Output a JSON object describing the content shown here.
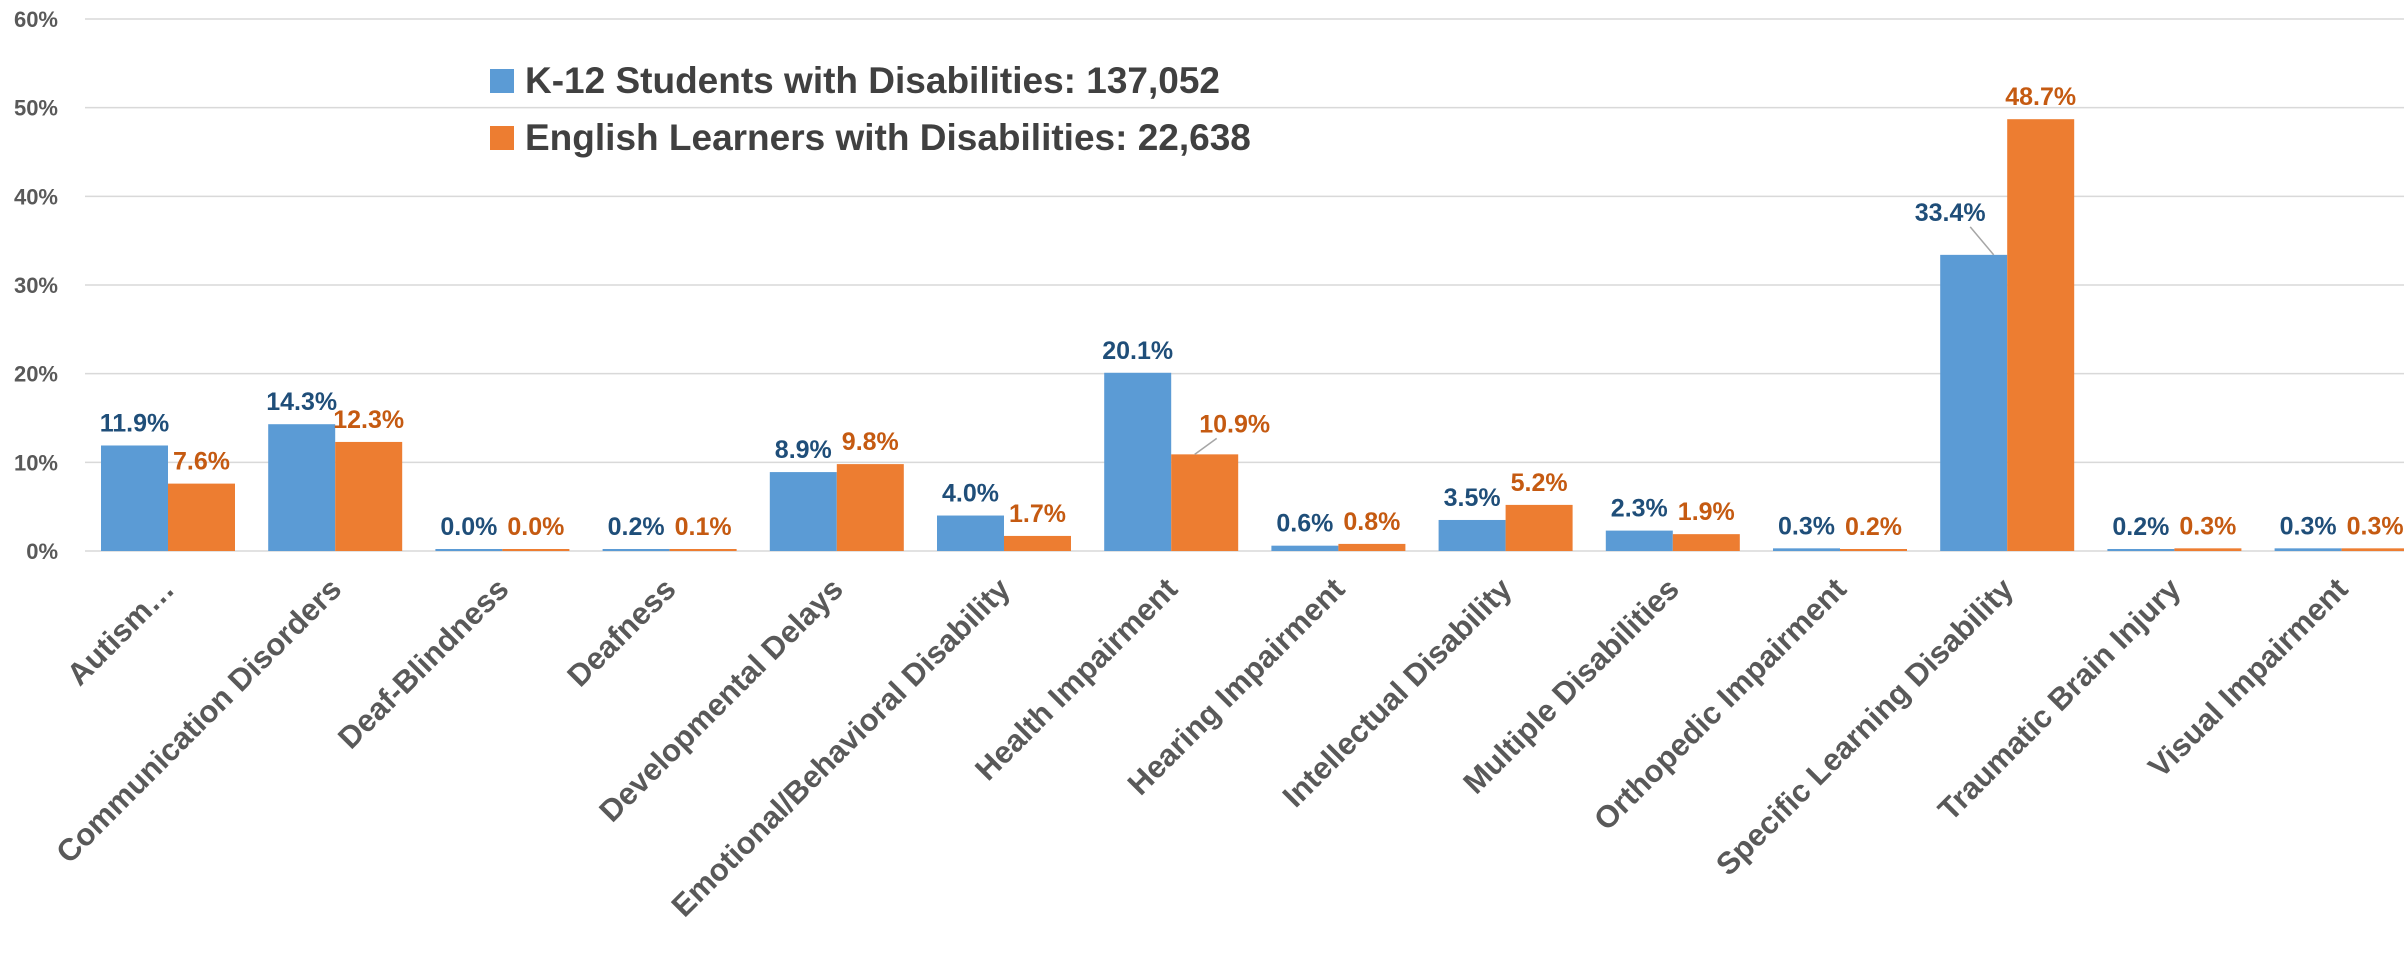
{
  "chart_data": {
    "type": "bar",
    "categories": [
      "Autism…",
      "Communication Disorders",
      "Deaf-Blindness",
      "Deafness",
      "Developmental Delays",
      "Emotional/Behavioral Disability",
      "Health Impairment",
      "Hearing Impairment",
      "Intellectual Disability",
      "Multiple Disabilities",
      "Orthopedic Impairment",
      "Specific Learning Disability",
      "Traumatic Brain Injury",
      "Visual Impairment"
    ],
    "series": [
      {
        "name": "K-12 Students with Disabilities: 137,052",
        "color": "#5b9bd5",
        "label_color": "#1f4e79",
        "values": [
          11.9,
          14.3,
          0.0,
          0.2,
          8.9,
          4.0,
          20.1,
          0.6,
          3.5,
          2.3,
          0.3,
          33.4,
          0.2,
          0.3
        ],
        "labels": [
          "11.9%",
          "14.3%",
          "0.0%",
          "0.2%",
          "8.9%",
          "4.0%",
          "20.1%",
          "0.6%",
          "3.5%",
          "2.3%",
          "0.3%",
          "33.4%",
          "0.2%",
          "0.3%"
        ]
      },
      {
        "name": "English Learners with Disabilities: 22,638",
        "color": "#ed7d31",
        "label_color": "#c55a11",
        "values": [
          7.6,
          12.3,
          0.0,
          0.1,
          9.8,
          1.7,
          10.9,
          0.8,
          5.2,
          1.9,
          0.2,
          48.7,
          0.3,
          0.3
        ],
        "labels": [
          "7.6%",
          "12.3%",
          "0.0%",
          "0.1%",
          "9.8%",
          "1.7%",
          "10.9%",
          "0.8%",
          "5.2%",
          "1.9%",
          "0.2%",
          "48.7%",
          "0.3%",
          "0.3%"
        ]
      }
    ],
    "yticks": [
      "0%",
      "10%",
      "20%",
      "30%",
      "40%",
      "50%",
      "60%"
    ],
    "ylim": [
      0,
      60
    ],
    "grid": true,
    "legend": "top-left",
    "xlabel": "",
    "ylabel": "",
    "title": ""
  }
}
